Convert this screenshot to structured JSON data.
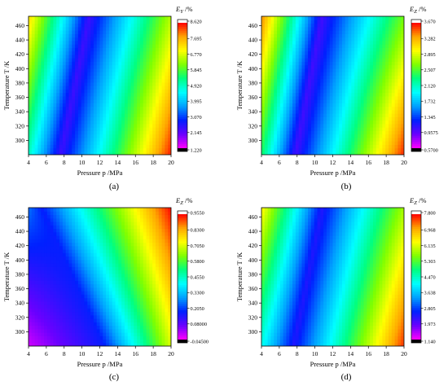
{
  "colors": {
    "colormap": [
      "#ff00ff",
      "#6a00ff",
      "#0020ff",
      "#00a0ff",
      "#00ffff",
      "#00ff80",
      "#7fff00",
      "#ffff00",
      "#ffa500",
      "#ff0000"
    ],
    "cbar_max_band": "#ffffff",
    "cbar_min_band": "#000000"
  },
  "chart_data": [
    {
      "type": "heatmap",
      "panel_label": "(a)",
      "xlabel": "Pressure p /MPa",
      "ylabel": "Temperature T /K",
      "colorbar_title": "E_Y /%",
      "colorbar_title_main": "E",
      "colorbar_title_sub": "Y",
      "colorbar_title_unit": " /%",
      "xlim": [
        4,
        20
      ],
      "ylim": [
        280,
        473
      ],
      "x_ticks": [
        "4",
        "6",
        "8",
        "10",
        "12",
        "14",
        "16",
        "18",
        "20"
      ],
      "y_ticks": [
        "300",
        "320",
        "340",
        "360",
        "380",
        "400",
        "420",
        "440",
        "460"
      ],
      "colorbar_ticks": [
        "8.620",
        "7.695",
        "6.770",
        "5.845",
        "4.920",
        "3.995",
        "3.070",
        "2.145",
        "1.220"
      ],
      "zlim": [
        1.22,
        8.62
      ],
      "field": {
        "min_ridge_p_at_T_min": 7.6,
        "min_ridge_p_at_T_max": 10.8,
        "value_at_ridge": 2.4,
        "left_p4_T_min": 4.9,
        "left_p4_T_max": 7.3,
        "right_p20_T_min": 8.5,
        "right_p20_T_max": 6.5
      }
    },
    {
      "type": "heatmap",
      "panel_label": "(b)",
      "xlabel": "Pressure p /MPa",
      "ylabel": "Temperature T /K",
      "colorbar_title": "E_Z /%",
      "colorbar_title_main": "E",
      "colorbar_title_sub": "Z",
      "colorbar_title_unit": " /%",
      "xlim": [
        4,
        20
      ],
      "ylim": [
        280,
        473
      ],
      "x_ticks": [
        "4",
        "6",
        "8",
        "10",
        "12",
        "14",
        "16",
        "18",
        "20"
      ],
      "y_ticks": [
        "300",
        "320",
        "340",
        "360",
        "380",
        "400",
        "420",
        "440",
        "460"
      ],
      "colorbar_ticks": [
        "3.670",
        "3.282",
        "2.895",
        "2.507",
        "2.120",
        "1.732",
        "1.345",
        "0.9575",
        "0.5700"
      ],
      "zlim": [
        0.57,
        3.67
      ],
      "field": {
        "min_ridge_p_at_T_min": 7.8,
        "min_ridge_p_at_T_max": 10.8,
        "value_at_ridge": 1.05,
        "left_p4_T_min": 2.35,
        "left_p4_T_max": 3.4,
        "right_p20_T_min": 3.6,
        "right_p20_T_max": 2.6
      }
    },
    {
      "type": "heatmap",
      "panel_label": "(c)",
      "xlabel": "Pressure p /MPa",
      "ylabel": "Temperature T /K",
      "colorbar_title": "E_Z /%",
      "colorbar_title_main": "E",
      "colorbar_title_sub": "Z",
      "colorbar_title_unit": " /%",
      "xlim": [
        4,
        20
      ],
      "ylim": [
        280,
        473
      ],
      "x_ticks": [
        "4",
        "6",
        "8",
        "10",
        "12",
        "14",
        "16",
        "18",
        "20"
      ],
      "y_ticks": [
        "300",
        "320",
        "340",
        "360",
        "380",
        "400",
        "420",
        "440",
        "460"
      ],
      "colorbar_ticks": [
        "0.9550",
        "0.8300",
        "0.7050",
        "0.5800",
        "0.4550",
        "0.3300",
        "0.2050",
        "0.08000",
        "-0.04500"
      ],
      "zlim": [
        -0.045,
        0.955
      ],
      "field": {
        "min_ridge_p_at_T_min": 12.5,
        "min_ridge_p_at_T_max": 5.5,
        "value_at_ridge": 0.17,
        "left_p4_T_min": -0.01,
        "left_p4_T_max": 0.25,
        "right_p20_T_min": 0.7,
        "right_p20_T_max": 0.95
      }
    },
    {
      "type": "heatmap",
      "panel_label": "(d)",
      "xlabel": "Pressure p /MPa",
      "ylabel": "Temperature T /K",
      "colorbar_title": "E_Z /%",
      "colorbar_title_main": "E",
      "colorbar_title_sub": "Z",
      "colorbar_title_unit": " /%",
      "xlim": [
        4,
        20
      ],
      "ylim": [
        280,
        473
      ],
      "x_ticks": [
        "4",
        "6",
        "8",
        "10",
        "12",
        "14",
        "16",
        "18",
        "20"
      ],
      "y_ticks": [
        "300",
        "320",
        "340",
        "360",
        "380",
        "400",
        "420",
        "440",
        "460"
      ],
      "colorbar_ticks": [
        "7.800",
        "6.968",
        "6.135",
        "5.303",
        "4.470",
        "3.638",
        "2.805",
        "1.973",
        "1.140"
      ],
      "zlim": [
        1.14,
        7.8
      ],
      "field": {
        "min_ridge_p_at_T_min": 7.6,
        "min_ridge_p_at_T_max": 10.8,
        "value_at_ridge": 2.4,
        "left_p4_T_min": 4.2,
        "left_p4_T_max": 6.4,
        "right_p20_T_min": 7.6,
        "right_p20_T_max": 5.8
      }
    }
  ]
}
